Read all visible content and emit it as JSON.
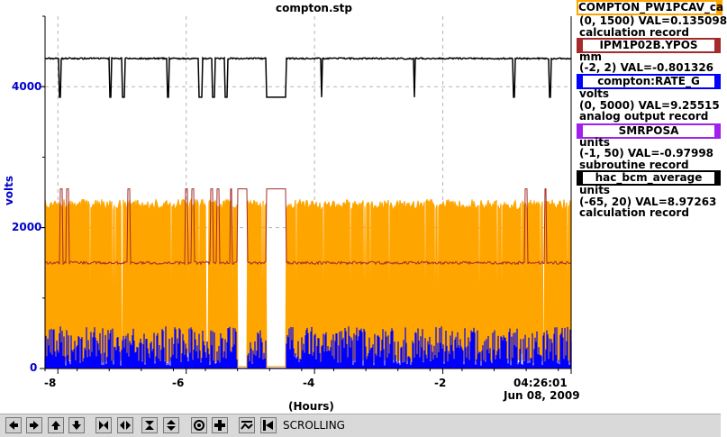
{
  "colors": {
    "black": "#000000",
    "orange": "#FFA500",
    "darkred": "#A52A2A",
    "blue": "#0000FF",
    "purple": "#A020F0",
    "axis_blue": "#0000CC",
    "grid": "#B4B4B4"
  },
  "chart_data": {
    "type": "line",
    "title": "compton.stp",
    "xlabel": "(Hours)",
    "ylabel": "volts",
    "xlim": [
      -8.2,
      0
    ],
    "ylim": [
      0,
      5000
    ],
    "x_ticks": [
      "-8",
      "-6",
      "-4",
      "-2"
    ],
    "y_ticks": [
      "0",
      "2000",
      "4000"
    ],
    "end_time": "04:26:01",
    "end_date": "Jun 08, 2009",
    "grid": true,
    "legend_placement": "right",
    "series": [
      {
        "name": "COMPTON_PW1PCAV_ca",
        "range": "(0, 1500)",
        "value": "VAL=0.135098",
        "record": "calculation record",
        "unit": "",
        "color": "orange",
        "description_values": {
          "baseline_y": 2400,
          "dropouts_y": 30
        }
      },
      {
        "name": "IPM1P02B.YPOS",
        "range": "(-2, 2)",
        "value": "VAL=-0.801326",
        "record": "",
        "unit": "mm",
        "color": "darkred",
        "description_values": {
          "baseline_y": 1500,
          "spikes_y": 2550
        }
      },
      {
        "name": "compton:RATE_G",
        "range": "(0, 5000)",
        "value": "VAL=9.25515",
        "record": "analog output record",
        "unit": "volts",
        "color": "blue",
        "description_values": {
          "baseline_y": 400,
          "noise_max_y": 600
        }
      },
      {
        "name": "SMRPOSA",
        "range": "(-1, 50)",
        "value": "VAL=-0.97998",
        "record": "subroutine record",
        "unit": "units",
        "color": "purple",
        "description_values": {
          "baseline_y": 0
        }
      },
      {
        "name": "hac_bcm_average",
        "range": "(-65, 20)",
        "value": "VAL=8.97263",
        "record": "calculation record",
        "unit": "units",
        "color": "black",
        "description_values": {
          "baseline_y": 4400,
          "dip_y": 3850
        }
      }
    ]
  },
  "toolbar": {
    "buttons": [
      "scroll-left",
      "scroll-right",
      "scroll-up",
      "scroll-down",
      "zoom-in-x",
      "zoom-out-x",
      "zoom-in-y",
      "zoom-out-y",
      "auto-scale",
      "crosshair",
      "scroll-toggle",
      "stop"
    ],
    "status": "SCROLLING"
  }
}
